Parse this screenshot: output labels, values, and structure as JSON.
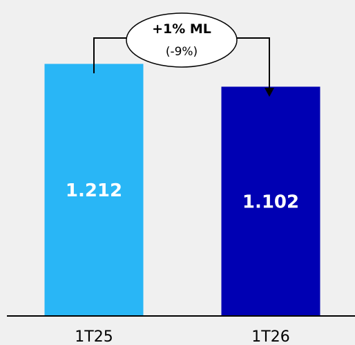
{
  "chart_data": {
    "type": "bar",
    "categories": [
      "1T25",
      "1T26"
    ],
    "values": [
      1212,
      1102
    ],
    "value_labels": [
      "1.212",
      "1.102"
    ],
    "bar_colors": [
      "#29b6f6",
      "#0000b3"
    ],
    "ylim": [
      0,
      1400
    ],
    "grid": false,
    "legend": "none",
    "annotation": {
      "title": "+1% ML",
      "subtitle": "(-9%)",
      "from": "1T25",
      "to": "1T26"
    }
  },
  "colors": {
    "background": "#f0f0f0",
    "axis": "#000000",
    "label_text": "#000000",
    "value_text": "#ffffff"
  }
}
